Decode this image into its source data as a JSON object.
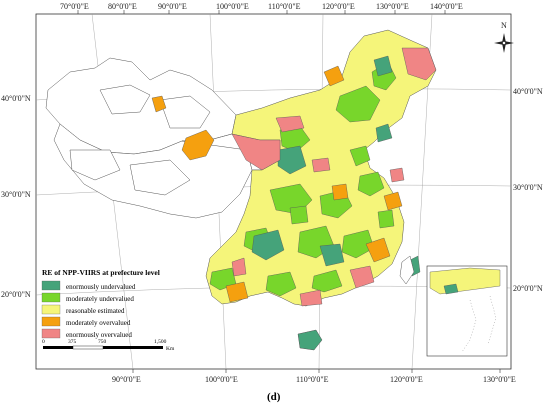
{
  "map": {
    "top_ticks": [
      "70°0'0\"E",
      "80°0'0\"E",
      "90°0'0\"E",
      "100°0'0\"E",
      "110°0'0\"E",
      "120°0'0\"E",
      "130°0'0\"E",
      "140°0'0\"E"
    ],
    "bottom_ticks": [
      "90°0'0\"E",
      "100°0'0\"E",
      "110°0'0\"E",
      "120°0'0\"E",
      "130°0'0\"E"
    ],
    "left_ticks": [
      "40°0'0\"N",
      "30°0'0\"N",
      "20°0'0\"N"
    ],
    "right_ticks": [
      "40°0'0\"N",
      "30°0'0\"N",
      "20°0'0\"N"
    ],
    "north_label": "N"
  },
  "legend": {
    "title": "RE of NPP-VIIRS at prefecture level",
    "items": [
      {
        "label": "enormously undervalued",
        "color": "#45a37a"
      },
      {
        "label": "moderately undervalued",
        "color": "#78d62b"
      },
      {
        "label": "reasonable estimated",
        "color": "#f5f57a"
      },
      {
        "label": "moderately overvalued",
        "color": "#f5a00f"
      },
      {
        "label": "enormously overvalued",
        "color": "#f08585"
      }
    ]
  },
  "scale_bar": {
    "ticks": [
      "0",
      "375",
      "750",
      "1,500"
    ],
    "unit": "Km"
  },
  "caption": "(d)"
}
